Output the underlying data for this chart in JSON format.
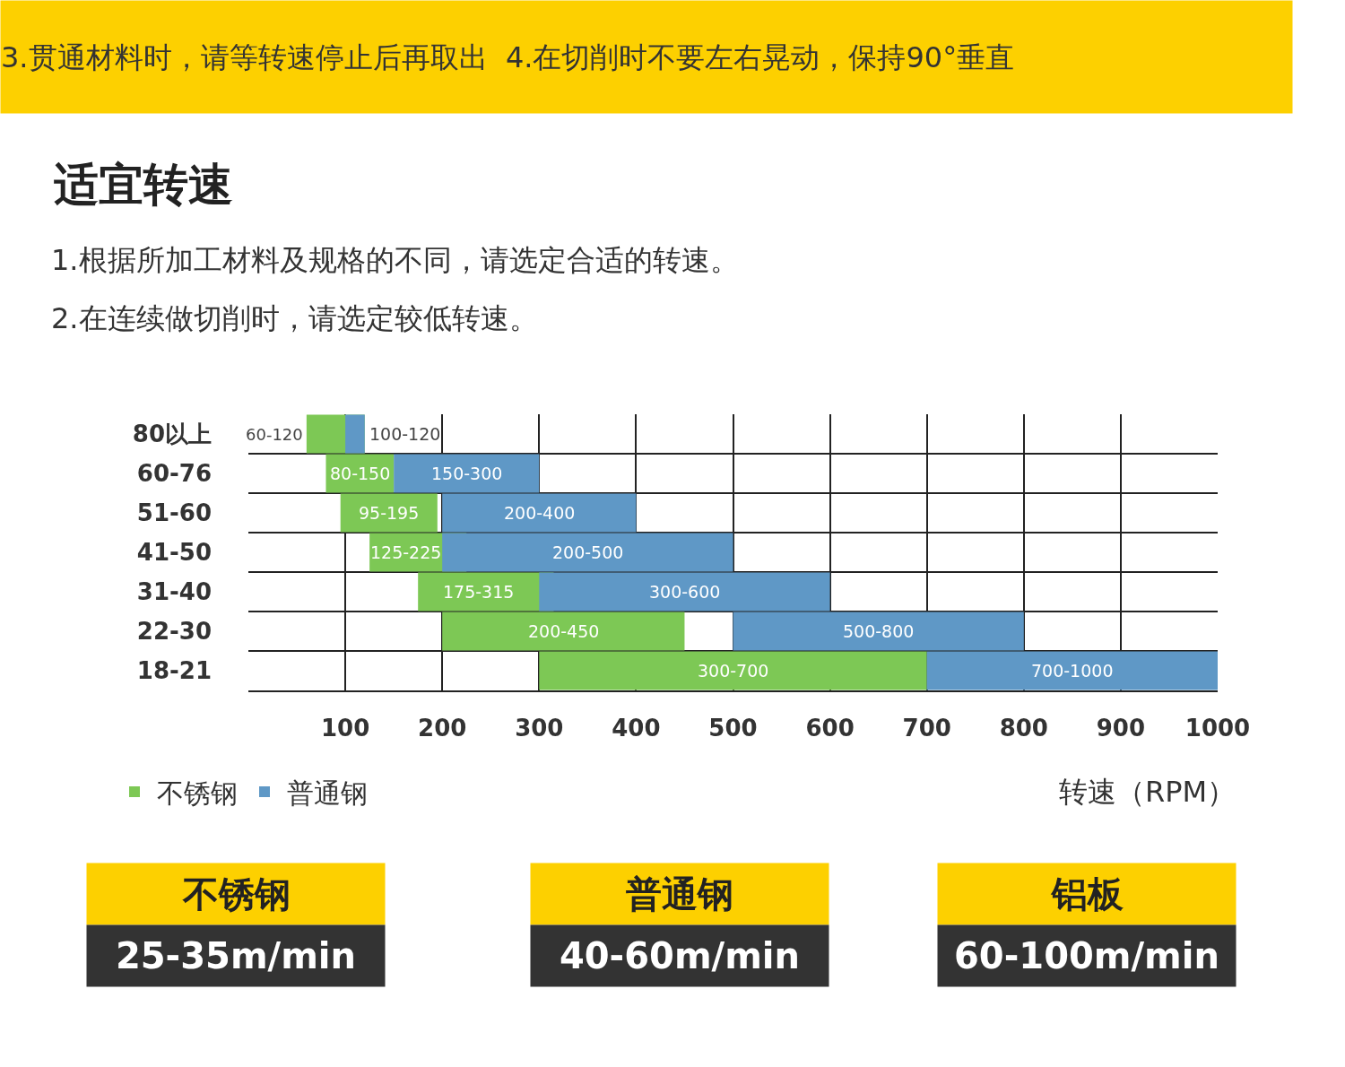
{
  "chart_data": {
    "type": "bar",
    "orientation": "horizontal",
    "title": "适宜转速",
    "subtitle": "1.根据所加工材料及规格的不同，请选定合适的转速。\n2.在连续做切削时，请选定较低转速。",
    "xlabel": "转速（RPM）",
    "categories": [
      "80以上",
      "60-76",
      "51-60",
      "41-50",
      "31-40",
      "22-30",
      "18-21"
    ],
    "series": [
      {
        "name": "普通钢",
        "color": "#5f98c6",
        "base": [
          100,
          150,
          200,
          200,
          300,
          500,
          700
        ],
        "values": [
          20,
          150,
          200,
          300,
          300,
          300,
          300
        ],
        "value_labels": [
          "100-120",
          "150-300",
          "200-400",
          "200-500",
          "300-600",
          "500-800",
          "700-1000"
        ]
      },
      {
        "name": "不锈钢",
        "color": "#7dc855",
        "base": [
          60,
          80,
          95,
          125,
          175,
          200,
          300
        ],
        "values": [
          60,
          70,
          100,
          100,
          140,
          250,
          400
        ],
        "value_labels": [
          "60-120",
          "80-150",
          "95-195",
          "125-225",
          "175-315",
          "200-450",
          "300-700"
        ]
      }
    ],
    "xlim": [
      0,
      1000
    ],
    "xticks": [
      100,
      200,
      300,
      400,
      500,
      600,
      700,
      800,
      900,
      1000
    ],
    "grid": true,
    "legend": "bottom left",
    "annotations": [
      "3.贯通材料时，请等转速停止后再取出  4.在切削时不要左右晃动，保持90°垂直",
      "不锈钢",
      "25-35m/min",
      "普通钢",
      "40-60m/min",
      "铝板",
      "60-100m/min"
    ]
  }
}
